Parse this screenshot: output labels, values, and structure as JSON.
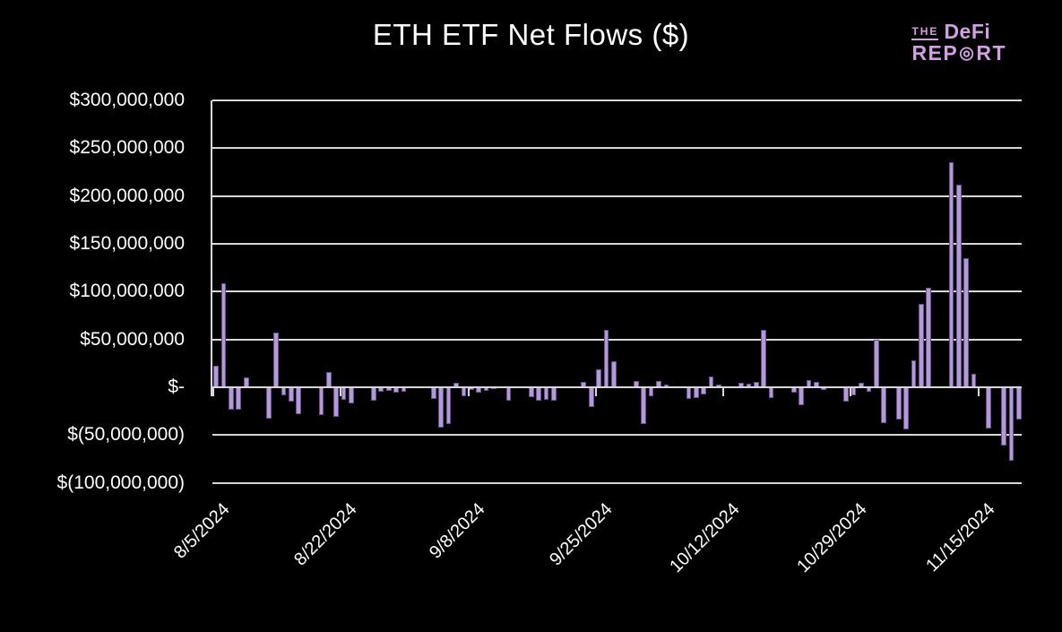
{
  "title": "ETH ETF Net Flows ($)",
  "logo": {
    "the": "THE",
    "brand": "DeFi",
    "report_pre": "REP",
    "bullseye": "◎",
    "report_post": "RT",
    "color": "#d29fe2"
  },
  "colors": {
    "background": "#000000",
    "text": "#ffffff",
    "gridline": "#d8d8d8",
    "axis": "#d8d8d8",
    "bar_fill": "#b29ad6",
    "bar_border": "#6d4c94",
    "logo": "#d29fe2"
  },
  "chart_data": {
    "type": "bar",
    "title": "ETH ETF Net Flows ($)",
    "xlabel": "",
    "ylabel": "",
    "grid": true,
    "legend": false,
    "ylim": [
      -100000000,
      300000000
    ],
    "x_start_date": "2024-08-05",
    "x_tick_interval_days": 17,
    "x_tick_labels": [
      "8/5/2024",
      "8/22/2024",
      "9/8/2024",
      "9/25/2024",
      "10/12/2024",
      "10/29/2024",
      "11/15/2024"
    ],
    "y_ticks": [
      {
        "label": "$300,000,000",
        "value": 300000000
      },
      {
        "label": "$250,000,000",
        "value": 250000000
      },
      {
        "label": "$200,000,000",
        "value": 200000000
      },
      {
        "label": "$150,000,000",
        "value": 150000000
      },
      {
        "label": "$100,000,000",
        "value": 100000000
      },
      {
        "label": "$50,000,000",
        "value": 50000000
      },
      {
        "label": "$-",
        "value": 0
      },
      {
        "label": "$(50,000,000)",
        "value": -50000000
      },
      {
        "label": "$(100,000,000)",
        "value": -100000000
      }
    ],
    "points": [
      {
        "date": "2024-08-05",
        "value": 23000000
      },
      {
        "date": "2024-08-06",
        "value": 109000000
      },
      {
        "date": "2024-08-07",
        "value": -23000000
      },
      {
        "date": "2024-08-08",
        "value": -23000000
      },
      {
        "date": "2024-08-09",
        "value": 10000000
      },
      {
        "date": "2024-08-12",
        "value": -33000000
      },
      {
        "date": "2024-08-13",
        "value": 57000000
      },
      {
        "date": "2024-08-14",
        "value": -8000000
      },
      {
        "date": "2024-08-15",
        "value": -15000000
      },
      {
        "date": "2024-08-16",
        "value": -28000000
      },
      {
        "date": "2024-08-19",
        "value": -29000000
      },
      {
        "date": "2024-08-20",
        "value": 16000000
      },
      {
        "date": "2024-08-21",
        "value": -31000000
      },
      {
        "date": "2024-08-22",
        "value": -13000000
      },
      {
        "date": "2024-08-23",
        "value": -17000000
      },
      {
        "date": "2024-08-26",
        "value": -14000000
      },
      {
        "date": "2024-08-27",
        "value": -5000000
      },
      {
        "date": "2024-08-28",
        "value": -4000000
      },
      {
        "date": "2024-08-29",
        "value": -6000000
      },
      {
        "date": "2024-08-30",
        "value": -5000000
      },
      {
        "date": "2024-09-03",
        "value": -12000000
      },
      {
        "date": "2024-09-04",
        "value": -42000000
      },
      {
        "date": "2024-09-05",
        "value": -38000000
      },
      {
        "date": "2024-09-06",
        "value": 5000000
      },
      {
        "date": "2024-09-07",
        "value": -9000000
      },
      {
        "date": "2024-09-08",
        "value": -3000000
      },
      {
        "date": "2024-09-09",
        "value": -6000000
      },
      {
        "date": "2024-09-10",
        "value": -4000000
      },
      {
        "date": "2024-09-11",
        "value": -2000000
      },
      {
        "date": "2024-09-13",
        "value": -14000000
      },
      {
        "date": "2024-09-16",
        "value": -10000000
      },
      {
        "date": "2024-09-17",
        "value": -14000000
      },
      {
        "date": "2024-09-18",
        "value": -13000000
      },
      {
        "date": "2024-09-19",
        "value": -14000000
      },
      {
        "date": "2024-09-23",
        "value": 6000000
      },
      {
        "date": "2024-09-24",
        "value": -21000000
      },
      {
        "date": "2024-09-25",
        "value": 19000000
      },
      {
        "date": "2024-09-26",
        "value": 60000000
      },
      {
        "date": "2024-09-27",
        "value": 27000000
      },
      {
        "date": "2024-09-30",
        "value": 7000000
      },
      {
        "date": "2024-10-01",
        "value": -38000000
      },
      {
        "date": "2024-10-02",
        "value": -9000000
      },
      {
        "date": "2024-10-03",
        "value": 7000000
      },
      {
        "date": "2024-10-04",
        "value": 3000000
      },
      {
        "date": "2024-10-07",
        "value": -12000000
      },
      {
        "date": "2024-10-08",
        "value": -11000000
      },
      {
        "date": "2024-10-09",
        "value": -7000000
      },
      {
        "date": "2024-10-10",
        "value": 11000000
      },
      {
        "date": "2024-10-11",
        "value": 3000000
      },
      {
        "date": "2024-10-14",
        "value": 5000000
      },
      {
        "date": "2024-10-15",
        "value": 4000000
      },
      {
        "date": "2024-10-16",
        "value": 6000000
      },
      {
        "date": "2024-10-17",
        "value": 60000000
      },
      {
        "date": "2024-10-18",
        "value": -11000000
      },
      {
        "date": "2024-10-21",
        "value": -6000000
      },
      {
        "date": "2024-10-22",
        "value": -19000000
      },
      {
        "date": "2024-10-23",
        "value": 8000000
      },
      {
        "date": "2024-10-24",
        "value": 6000000
      },
      {
        "date": "2024-10-25",
        "value": -3000000
      },
      {
        "date": "2024-10-28",
        "value": -15000000
      },
      {
        "date": "2024-10-29",
        "value": -8000000
      },
      {
        "date": "2024-10-30",
        "value": 5000000
      },
      {
        "date": "2024-10-31",
        "value": -5000000
      },
      {
        "date": "2024-11-01",
        "value": 50000000
      },
      {
        "date": "2024-11-02",
        "value": -37000000
      },
      {
        "date": "2024-11-04",
        "value": -34000000
      },
      {
        "date": "2024-11-05",
        "value": -44000000
      },
      {
        "date": "2024-11-06",
        "value": 28000000
      },
      {
        "date": "2024-11-07",
        "value": 87000000
      },
      {
        "date": "2024-11-08",
        "value": 104000000
      },
      {
        "date": "2024-11-11",
        "value": 235000000
      },
      {
        "date": "2024-11-12",
        "value": 212000000
      },
      {
        "date": "2024-11-13",
        "value": 135000000
      },
      {
        "date": "2024-11-14",
        "value": 14000000
      },
      {
        "date": "2024-11-16",
        "value": -43000000
      },
      {
        "date": "2024-11-18",
        "value": -61000000
      },
      {
        "date": "2024-11-19",
        "value": -77000000
      },
      {
        "date": "2024-11-20",
        "value": -34000000
      }
    ]
  }
}
